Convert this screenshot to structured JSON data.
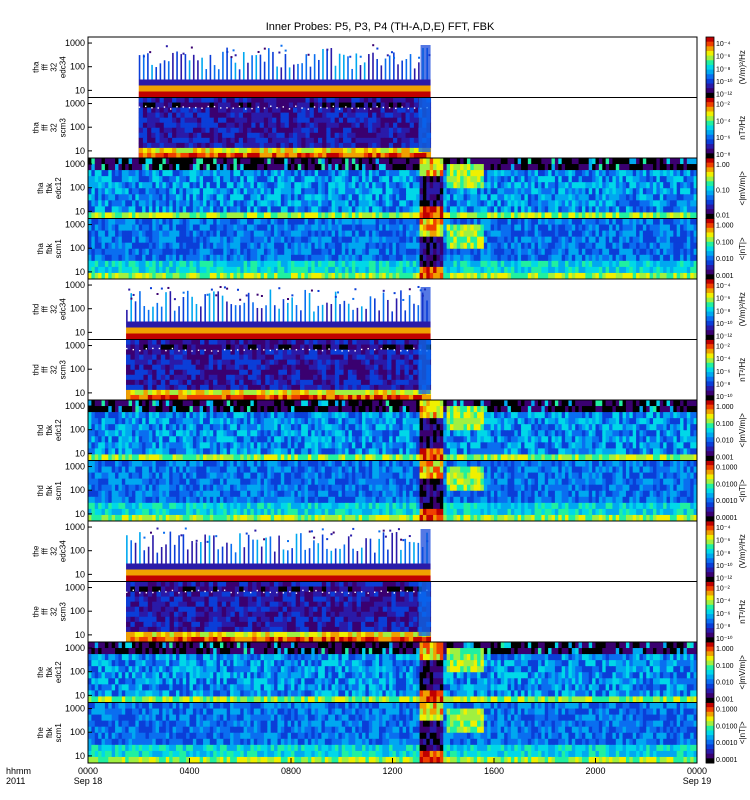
{
  "chart_data": {
    "type": "heatmap",
    "title": "Inner Probes: P5, P3, P4 (TH-A,D,E) FFT, FBK",
    "x_axis": {
      "label_top": "hhmm",
      "label_bottom": "2011",
      "ticks": [
        "0000",
        "0400",
        "0800",
        "1200",
        "1600",
        "2000",
        "0000"
      ],
      "tick_dates": {
        "start": "Sep 18",
        "end": "Sep 19"
      },
      "range_hours": [
        0,
        24
      ]
    },
    "panels": [
      {
        "ylabel": [
          "tha",
          "fff",
          "32",
          "edc34"
        ],
        "yticks": [
          "10",
          "100",
          "1000"
        ],
        "kind": "sparse",
        "data_start_h": 2.0,
        "data_end_h": 13.5,
        "cbar_ticks": [
          "10⁻⁴",
          "10⁻⁶",
          "10⁻⁸",
          "10⁻¹⁰",
          "10⁻¹²"
        ],
        "cbar_label": "(V/m)²/Hz"
      },
      {
        "ylabel": [
          "tha",
          "fff",
          "32",
          "scm3"
        ],
        "yticks": [
          "10",
          "100",
          "1000"
        ],
        "kind": "scm",
        "data_start_h": 2.0,
        "data_end_h": 13.5,
        "cbar_ticks": [
          "10⁻²",
          "10⁻⁴",
          "10⁻⁶",
          "10⁻⁸"
        ],
        "cbar_label": "nT²/Hz"
      },
      {
        "ylabel": [
          "tha",
          "fbk",
          "edc12"
        ],
        "yticks": [
          "10",
          "100",
          "1000"
        ],
        "kind": "fbk",
        "data_start_h": 0,
        "data_end_h": 24,
        "cbar_ticks": [
          "1.00",
          "0.10",
          "0.01"
        ],
        "cbar_label": "<|mV/m|>"
      },
      {
        "ylabel": [
          "tha",
          "fbk",
          "scm1"
        ],
        "yticks": [
          "10",
          "100",
          "1000"
        ],
        "kind": "fbkscm",
        "data_start_h": 0,
        "data_end_h": 24,
        "cbar_ticks": [
          "1.000",
          "0.100",
          "0.010",
          "0.001"
        ],
        "cbar_label": "<|nT|>"
      },
      {
        "ylabel": [
          "thd",
          "fff",
          "32",
          "edc34"
        ],
        "yticks": [
          "10",
          "100",
          "1000"
        ],
        "kind": "sparse",
        "data_start_h": 1.5,
        "data_end_h": 13.5,
        "cbar_ticks": [
          "10⁻⁴",
          "10⁻⁶",
          "10⁻⁸",
          "10⁻¹⁰",
          "10⁻¹²"
        ],
        "cbar_label": "(V/m)²/Hz"
      },
      {
        "ylabel": [
          "thd",
          "fff",
          "32",
          "scm3"
        ],
        "yticks": [
          "10",
          "100",
          "1000"
        ],
        "kind": "scm",
        "data_start_h": 1.5,
        "data_end_h": 13.5,
        "cbar_ticks": [
          "10⁻²",
          "10⁻⁴",
          "10⁻⁶",
          "10⁻⁸",
          "10⁻¹⁰"
        ],
        "cbar_label": "nT²/Hz"
      },
      {
        "ylabel": [
          "thd",
          "fbk",
          "edc12"
        ],
        "yticks": [
          "10",
          "100",
          "1000"
        ],
        "kind": "fbk",
        "data_start_h": 0,
        "data_end_h": 24,
        "cbar_ticks": [
          "1.000",
          "0.100",
          "0.010",
          "0.001"
        ],
        "cbar_label": "<|mV/m|>"
      },
      {
        "ylabel": [
          "thd",
          "fbk",
          "scm1"
        ],
        "yticks": [
          "10",
          "100",
          "1000"
        ],
        "kind": "fbkscm",
        "data_start_h": 0,
        "data_end_h": 24,
        "cbar_ticks": [
          "0.1000",
          "0.0100",
          "0.0010",
          "0.0001"
        ],
        "cbar_label": "<|nT|>"
      },
      {
        "ylabel": [
          "the",
          "fff",
          "32",
          "edc34"
        ],
        "yticks": [
          "10",
          "100",
          "1000"
        ],
        "kind": "sparse",
        "data_start_h": 1.5,
        "data_end_h": 13.5,
        "cbar_ticks": [
          "10⁻⁴",
          "10⁻⁶",
          "10⁻⁸",
          "10⁻¹⁰",
          "10⁻¹²"
        ],
        "cbar_label": "(V/m)²/Hz"
      },
      {
        "ylabel": [
          "the",
          "fff",
          "32",
          "scm3"
        ],
        "yticks": [
          "10",
          "100",
          "1000"
        ],
        "kind": "scm",
        "data_start_h": 1.5,
        "data_end_h": 13.5,
        "cbar_ticks": [
          "10⁻²",
          "10⁻⁴",
          "10⁻⁶",
          "10⁻⁸",
          "10⁻¹⁰"
        ],
        "cbar_label": "nT²/Hz"
      },
      {
        "ylabel": [
          "the",
          "fbk",
          "edc12"
        ],
        "yticks": [
          "10",
          "100",
          "1000"
        ],
        "kind": "fbk",
        "data_start_h": 0,
        "data_end_h": 24,
        "cbar_ticks": [
          "1.000",
          "0.100",
          "0.010",
          "0.001"
        ],
        "cbar_label": "<|mV/m|>"
      },
      {
        "ylabel": [
          "the",
          "fbk",
          "scm1"
        ],
        "yticks": [
          "10",
          "100",
          "1000"
        ],
        "kind": "fbkscm",
        "data_start_h": 0,
        "data_end_h": 24,
        "cbar_ticks": [
          "0.1000",
          "0.0100",
          "0.0010",
          "0.0001"
        ],
        "cbar_label": "<|nT|>"
      }
    ],
    "colormap": [
      "#000000",
      "#3a0070",
      "#2a1aa8",
      "#0b3ed8",
      "#0a6ef0",
      "#00a8f0",
      "#00d8e8",
      "#20f0a0",
      "#a0f040",
      "#f0f000",
      "#f0a000",
      "#f04000",
      "#c00000"
    ]
  }
}
